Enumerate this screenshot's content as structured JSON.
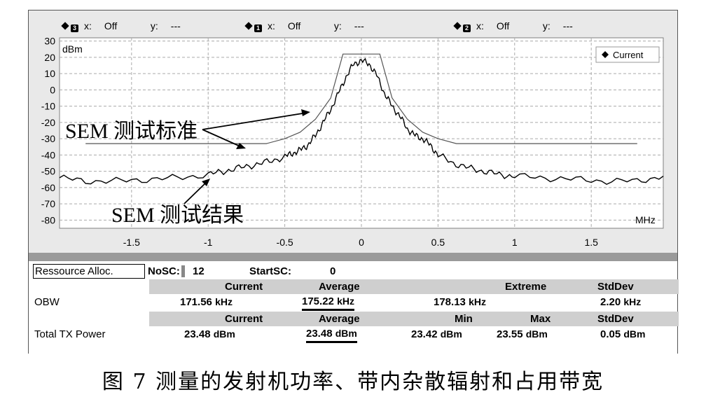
{
  "markers": [
    {
      "id": "3",
      "x_label": "x:",
      "x_value": "Off",
      "y_label": "y:",
      "y_value": "---"
    },
    {
      "id": "1",
      "x_label": "x:",
      "x_value": "Off",
      "y_label": "y:",
      "y_value": "---"
    },
    {
      "id": "2",
      "x_label": "x:",
      "x_value": "Off",
      "y_label": "y:",
      "y_value": "---"
    }
  ],
  "chart_data": {
    "type": "line",
    "ylabel": "dBm",
    "xlabel": "MHz",
    "ylim": [
      -85,
      32
    ],
    "xlim": [
      -1.97,
      1.97
    ],
    "yticks": [
      30,
      20,
      10,
      0,
      -10,
      -20,
      -30,
      -40,
      -50,
      -60,
      -70,
      -80
    ],
    "xticks": [
      -1.5,
      -1,
      -0.5,
      0,
      0.5,
      1,
      1.5
    ],
    "xticklabels": [
      "-1.5",
      "-1",
      "-0.5",
      "0",
      "0.5",
      "1",
      "1.5"
    ],
    "grid": true,
    "legend": {
      "label": "Current",
      "position": "top-right"
    },
    "series": [
      {
        "name": "Current",
        "x": [
          -1.97,
          -1.8,
          -1.6,
          -1.4,
          -1.2,
          -1.0,
          -0.9,
          -0.8,
          -0.7,
          -0.6,
          -0.5,
          -0.45,
          -0.4,
          -0.35,
          -0.3,
          -0.25,
          -0.2,
          -0.15,
          -0.1,
          -0.05,
          0.0,
          0.05,
          0.1,
          0.15,
          0.2,
          0.25,
          0.3,
          0.35,
          0.4,
          0.45,
          0.5,
          0.6,
          0.7,
          0.8,
          0.9,
          1.0,
          1.2,
          1.4,
          1.6,
          1.8,
          1.97
        ],
        "y": [
          -54,
          -56,
          -56,
          -55,
          -54,
          -52,
          -50,
          -48,
          -46,
          -44,
          -41,
          -39,
          -37,
          -34,
          -28,
          -20,
          -12,
          -2,
          8,
          16,
          18,
          16,
          9,
          -2,
          -10,
          -16,
          -24,
          -28,
          -30,
          -34,
          -40,
          -45,
          -48,
          -50,
          -52,
          -53,
          -54,
          -55,
          -56,
          -56,
          -53
        ]
      }
    ],
    "mask": {
      "x": [
        -1.8,
        -0.8,
        -0.62,
        -0.5,
        -0.4,
        -0.3,
        -0.2,
        -0.12,
        0.12,
        0.2,
        0.3,
        0.4,
        0.5,
        0.62,
        0.8,
        1.8
      ],
      "y": [
        -33,
        -33,
        -33,
        -30,
        -26,
        -18,
        -5,
        22,
        22,
        -5,
        -18,
        -26,
        -30,
        -33,
        -33,
        -33
      ]
    },
    "annotations": [
      {
        "text": "SEM 测试标准"
      },
      {
        "text": "SEM 测试结果"
      }
    ]
  },
  "table": {
    "alloc_label": "Ressource Alloc.",
    "nosc_label": "NoSC:",
    "nosc_value": "12",
    "startsc_label": "StartSC:",
    "startsc_value": "0",
    "obw_headers": {
      "current": "Current",
      "average": "Average",
      "extreme": "Extreme",
      "stddev": "StdDev"
    },
    "obw": {
      "label": "OBW",
      "current": "171.56",
      "current_unit": "kHz",
      "average": "175.22",
      "average_unit": "kHz",
      "extreme": "178.13",
      "extreme_unit": "kHz",
      "stddev": "2.20",
      "stddev_unit": "kHz"
    },
    "power_headers": {
      "current": "Current",
      "average": "Average",
      "min": "Min",
      "max": "Max",
      "stddev": "StdDev"
    },
    "power": {
      "label": "Total TX Power",
      "current": "23.48",
      "current_unit": "dBm",
      "average": "23.48",
      "average_unit": "dBm",
      "min": "23.42",
      "min_unit": "dBm",
      "max": "23.55",
      "max_unit": "dBm",
      "stddev": "0.05",
      "stddev_unit": "dBm"
    }
  },
  "caption": "图 7   测量的发射机功率、带内杂散辐射和占用带宽"
}
